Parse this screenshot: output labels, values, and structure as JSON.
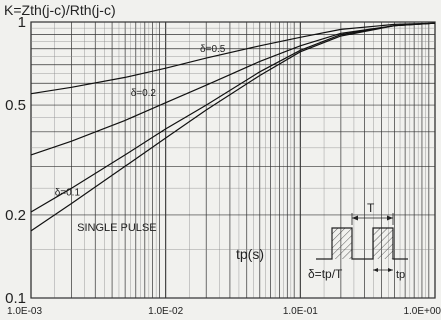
{
  "chart_data": {
    "type": "line",
    "title": "K=Zth(j-c)/Rth(j-c)",
    "xlabel": "tp(s)",
    "ylabel": "",
    "x_scale": "log",
    "y_scale": "log",
    "xlim": [
      0.001,
      1
    ],
    "ylim": [
      0.1,
      1
    ],
    "grid": true,
    "x_ticks": [
      "1.0E-03",
      "1.0E-02",
      "1.0E-01",
      "1.0E+00"
    ],
    "y_ticks": [
      "1",
      "0.5",
      "0.2",
      "0.1"
    ],
    "series": [
      {
        "name": "δ=0.5",
        "x": [
          0.001,
          0.002,
          0.005,
          0.01,
          0.02,
          0.05,
          0.1,
          0.2,
          0.5,
          1
        ],
        "y": [
          0.55,
          0.58,
          0.63,
          0.68,
          0.74,
          0.82,
          0.88,
          0.94,
          0.98,
          0.99
        ]
      },
      {
        "name": "δ=0.2",
        "x": [
          0.001,
          0.002,
          0.005,
          0.01,
          0.02,
          0.05,
          0.1,
          0.2,
          0.5,
          1
        ],
        "y": [
          0.33,
          0.37,
          0.44,
          0.51,
          0.59,
          0.72,
          0.82,
          0.91,
          0.97,
          0.99
        ]
      },
      {
        "name": "δ=0.1",
        "x": [
          0.001,
          0.002,
          0.005,
          0.01,
          0.02,
          0.05,
          0.1,
          0.2,
          0.5,
          1
        ],
        "y": [
          0.205,
          0.25,
          0.33,
          0.41,
          0.5,
          0.66,
          0.79,
          0.9,
          0.97,
          0.99
        ]
      },
      {
        "name": "SINGLE PULSE",
        "x": [
          0.001,
          0.002,
          0.005,
          0.01,
          0.02,
          0.05,
          0.1,
          0.2,
          0.5,
          1
        ],
        "y": [
          0.175,
          0.22,
          0.3,
          0.38,
          0.48,
          0.64,
          0.78,
          0.89,
          0.97,
          0.99
        ]
      }
    ],
    "series_labels": [
      {
        "text": "δ=0.5",
        "x": 0.018,
        "y": 0.78
      },
      {
        "text": "δ=0.2",
        "x": 0.0055,
        "y": 0.54
      },
      {
        "text": "δ=0.1",
        "x": 0.0015,
        "y": 0.235
      },
      {
        "text": "SINGLE PULSE",
        "x": 0.0022,
        "y": 0.175
      }
    ],
    "annotations": {
      "period_label": "T",
      "duty_label": "δ=tp/T",
      "pulse_label": "tp"
    }
  }
}
